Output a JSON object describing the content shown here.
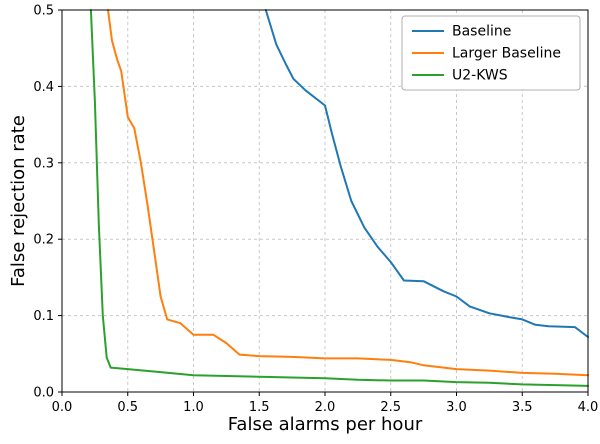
{
  "chart_data": {
    "type": "line",
    "title": "",
    "xlabel": "False alarms per hour",
    "ylabel": "False rejection rate",
    "xlim": [
      0.0,
      4.0
    ],
    "ylim": [
      0.0,
      0.5
    ],
    "xticks": [
      0.0,
      0.5,
      1.0,
      1.5,
      2.0,
      2.5,
      3.0,
      3.5,
      4.0
    ],
    "yticks": [
      0.0,
      0.1,
      0.2,
      0.3,
      0.4,
      0.5
    ],
    "grid": "dashed",
    "grid_color": "#c8c8c8",
    "legend_position": "upper right",
    "series": [
      {
        "name": "Baseline",
        "color": "#1f77b4",
        "points": [
          [
            1.55,
            0.5
          ],
          [
            1.63,
            0.455
          ],
          [
            1.7,
            0.43
          ],
          [
            1.76,
            0.41
          ],
          [
            1.85,
            0.395
          ],
          [
            2.0,
            0.375
          ],
          [
            2.05,
            0.34
          ],
          [
            2.12,
            0.295
          ],
          [
            2.2,
            0.25
          ],
          [
            2.3,
            0.215
          ],
          [
            2.4,
            0.19
          ],
          [
            2.5,
            0.17
          ],
          [
            2.6,
            0.146
          ],
          [
            2.75,
            0.145
          ],
          [
            2.9,
            0.132
          ],
          [
            3.0,
            0.125
          ],
          [
            3.1,
            0.112
          ],
          [
            3.25,
            0.103
          ],
          [
            3.4,
            0.098
          ],
          [
            3.5,
            0.095
          ],
          [
            3.6,
            0.088
          ],
          [
            3.7,
            0.086
          ],
          [
            3.9,
            0.085
          ],
          [
            4.0,
            0.072
          ]
        ]
      },
      {
        "name": "Larger Baseline",
        "color": "#ff7f0e",
        "points": [
          [
            0.35,
            0.5
          ],
          [
            0.38,
            0.46
          ],
          [
            0.42,
            0.435
          ],
          [
            0.45,
            0.42
          ],
          [
            0.5,
            0.36
          ],
          [
            0.55,
            0.345
          ],
          [
            0.6,
            0.3
          ],
          [
            0.65,
            0.245
          ],
          [
            0.7,
            0.185
          ],
          [
            0.75,
            0.125
          ],
          [
            0.8,
            0.095
          ],
          [
            0.9,
            0.09
          ],
          [
            1.0,
            0.075
          ],
          [
            1.15,
            0.075
          ],
          [
            1.25,
            0.064
          ],
          [
            1.35,
            0.049
          ],
          [
            1.5,
            0.047
          ],
          [
            1.75,
            0.046
          ],
          [
            2.0,
            0.044
          ],
          [
            2.25,
            0.044
          ],
          [
            2.5,
            0.042
          ],
          [
            2.65,
            0.039
          ],
          [
            2.75,
            0.035
          ],
          [
            3.0,
            0.03
          ],
          [
            3.25,
            0.028
          ],
          [
            3.5,
            0.025
          ],
          [
            3.75,
            0.024
          ],
          [
            4.0,
            0.022
          ]
        ]
      },
      {
        "name": "U2-KWS",
        "color": "#2ca02c",
        "points": [
          [
            0.22,
            0.5
          ],
          [
            0.25,
            0.38
          ],
          [
            0.28,
            0.22
          ],
          [
            0.31,
            0.1
          ],
          [
            0.34,
            0.045
          ],
          [
            0.37,
            0.032
          ],
          [
            0.5,
            0.03
          ],
          [
            0.75,
            0.026
          ],
          [
            1.0,
            0.022
          ],
          [
            1.25,
            0.021
          ],
          [
            1.5,
            0.02
          ],
          [
            1.75,
            0.019
          ],
          [
            2.0,
            0.018
          ],
          [
            2.25,
            0.016
          ],
          [
            2.5,
            0.015
          ],
          [
            2.75,
            0.015
          ],
          [
            3.0,
            0.013
          ],
          [
            3.25,
            0.012
          ],
          [
            3.5,
            0.01
          ],
          [
            3.75,
            0.009
          ],
          [
            4.0,
            0.008
          ]
        ]
      }
    ]
  }
}
